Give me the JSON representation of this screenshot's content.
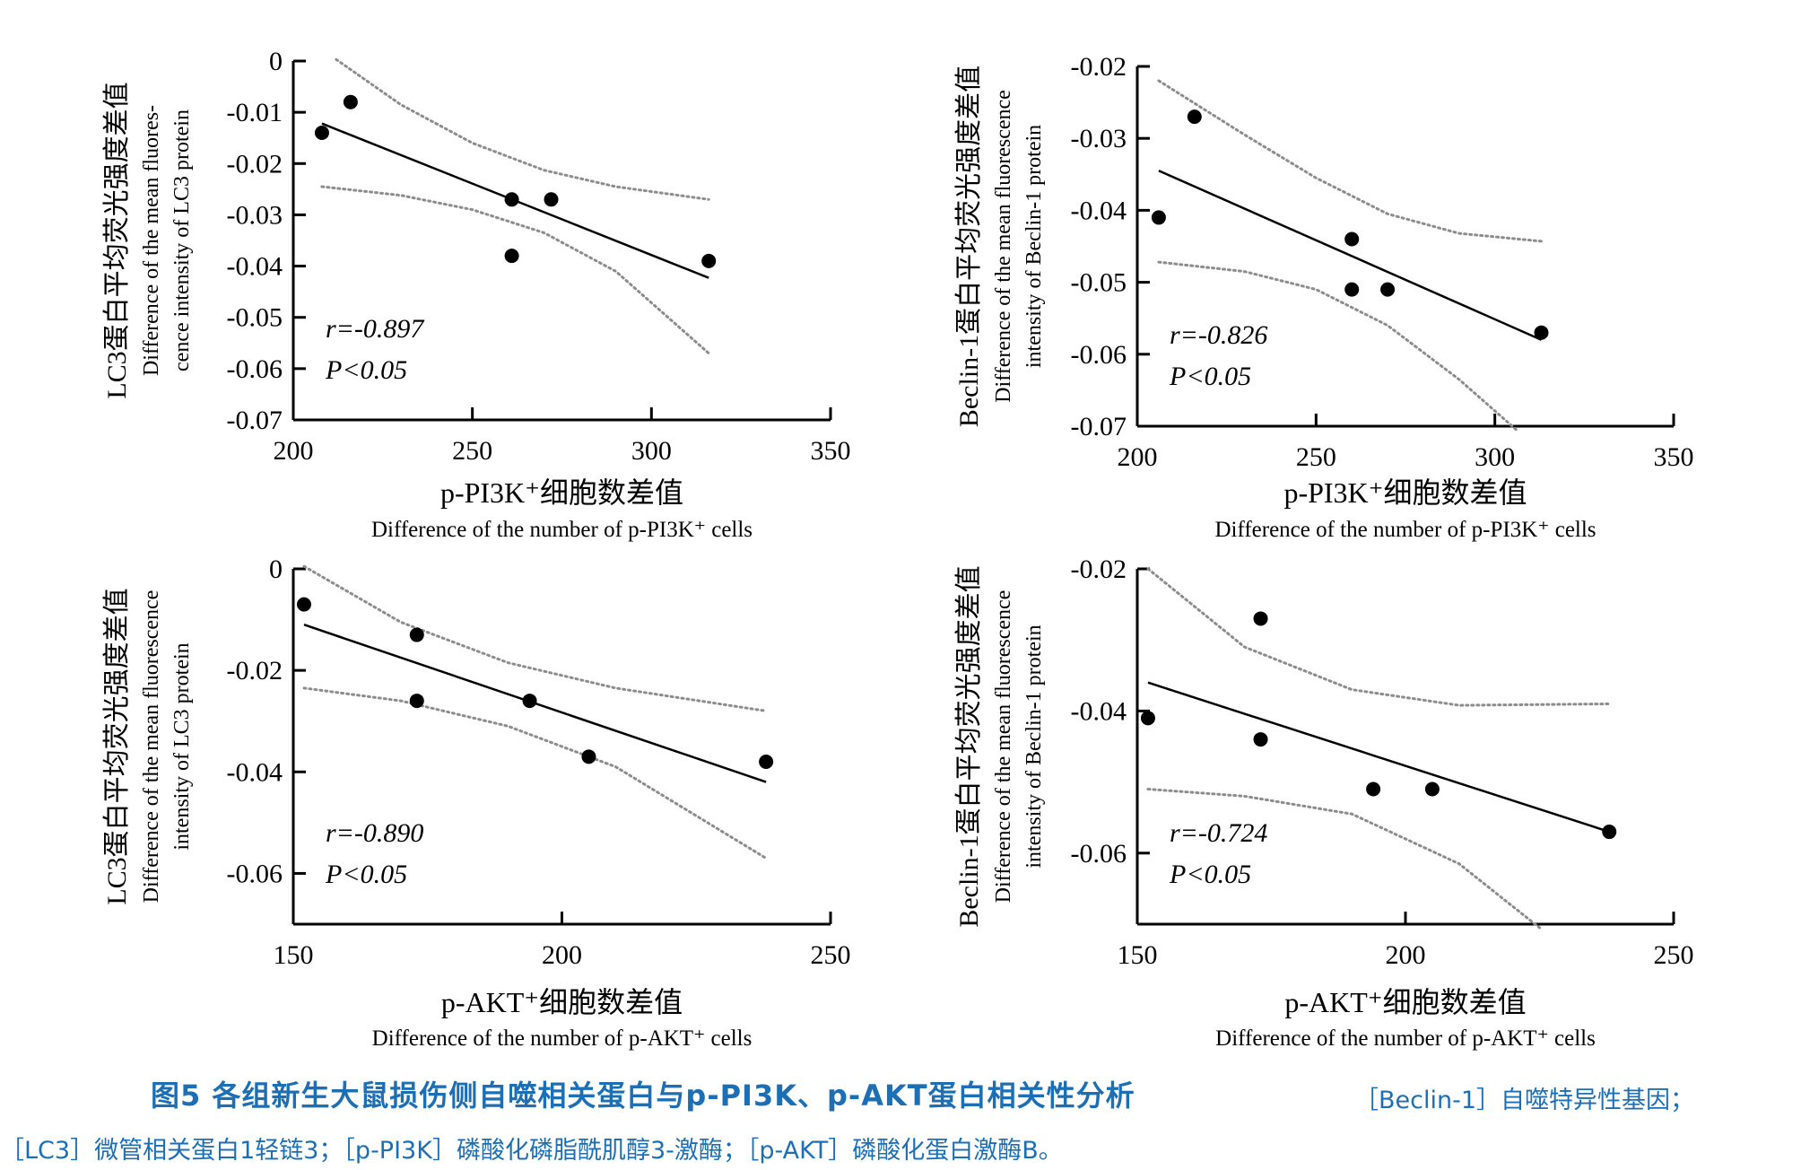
{
  "chart_data": [
    {
      "type": "scatter",
      "xlabel_cn": "p-PI3K⁺细胞数差值",
      "xlabel_en": "Difference of the number of p-PI3K⁺ cells",
      "ylabel_cn": "LC3蛋白平均荧光强度差值",
      "ylabel_en": [
        "Difference of the mean fluores-",
        "cence intensity of LC3 protein"
      ],
      "xlim": [
        200,
        350
      ],
      "ylim": [
        -0.07,
        0
      ],
      "xticks": [
        200,
        250,
        300,
        350
      ],
      "xtick_labels": [
        "200",
        "250",
        "300",
        "350"
      ],
      "yticks": [
        0,
        -0.01,
        -0.02,
        -0.03,
        -0.04,
        -0.05,
        -0.06,
        -0.07
      ],
      "ytick_labels": [
        "0",
        "-0.01",
        "-0.02",
        "-0.03",
        "-0.04",
        "-0.05",
        "-0.06",
        "-0.07"
      ],
      "points": [
        {
          "x": 216,
          "y": -0.008
        },
        {
          "x": 208,
          "y": -0.014
        },
        {
          "x": 261,
          "y": -0.027
        },
        {
          "x": 272,
          "y": -0.027
        },
        {
          "x": 261,
          "y": -0.038
        },
        {
          "x": 316,
          "y": -0.039
        }
      ],
      "fit": {
        "x": [
          208,
          316
        ],
        "y": [
          -0.0122,
          -0.0423
        ]
      },
      "ci_upper": {
        "x": [
          212,
          230,
          250,
          270,
          290,
          316
        ],
        "y": [
          0.0003,
          -0.0085,
          -0.016,
          -0.0213,
          -0.0245,
          -0.027
        ]
      },
      "ci_lower": {
        "x": [
          208,
          230,
          250,
          270,
          290,
          316
        ],
        "y": [
          -0.0245,
          -0.0262,
          -0.029,
          -0.0335,
          -0.041,
          -0.057
        ]
      },
      "r_label": "r=-0.897",
      "p_label": "P<0.05"
    },
    {
      "type": "scatter",
      "xlabel_cn": "p-PI3K⁺细胞数差值",
      "xlabel_en": "Difference of the number of p-PI3K⁺ cells",
      "ylabel_cn": "Beclin-1蛋白平均荧光强度差值",
      "ylabel_en": [
        "Difference of the mean fluorescence",
        "intensity of Beclin-1 protein"
      ],
      "xlim": [
        200,
        350
      ],
      "ylim": [
        -0.07,
        -0.02
      ],
      "xticks": [
        200,
        250,
        300,
        350
      ],
      "xtick_labels": [
        "200",
        "250",
        "300",
        "350"
      ],
      "yticks": [
        -0.02,
        -0.03,
        -0.04,
        -0.05,
        -0.06,
        -0.07
      ],
      "ytick_labels": [
        "-0.02",
        "-0.03",
        "-0.04",
        "-0.05",
        "-0.06",
        "-0.07"
      ],
      "points": [
        {
          "x": 216,
          "y": -0.027
        },
        {
          "x": 206,
          "y": -0.041
        },
        {
          "x": 260,
          "y": -0.044
        },
        {
          "x": 260,
          "y": -0.051
        },
        {
          "x": 270,
          "y": -0.051
        },
        {
          "x": 313,
          "y": -0.057
        }
      ],
      "fit": {
        "x": [
          206,
          313
        ],
        "y": [
          -0.0345,
          -0.058
        ]
      },
      "ci_upper": {
        "x": [
          206,
          230,
          250,
          270,
          290,
          313
        ],
        "y": [
          -0.022,
          -0.0295,
          -0.0355,
          -0.0405,
          -0.0432,
          -0.0443
        ]
      },
      "ci_lower": {
        "x": [
          206,
          230,
          250,
          270,
          290,
          306
        ],
        "y": [
          -0.0472,
          -0.0485,
          -0.051,
          -0.056,
          -0.0635,
          -0.0705
        ]
      },
      "r_label": "r=-0.826",
      "p_label": "P<0.05"
    },
    {
      "type": "scatter",
      "xlabel_cn": "p-AKT⁺细胞数差值",
      "xlabel_en": "Difference of the number of p-AKT⁺ cells",
      "ylabel_cn": "LC3蛋白平均荧光强度差值",
      "ylabel_en": [
        "Difference of the mean fluorescence",
        "intensity of LC3 protein"
      ],
      "xlim": [
        150,
        250
      ],
      "ylim": [
        -0.07,
        0
      ],
      "xticks": [
        150,
        200,
        250
      ],
      "xtick_labels": [
        "150",
        "200",
        "250"
      ],
      "yticks": [
        0,
        -0.02,
        -0.04,
        -0.06
      ],
      "ytick_labels": [
        "0",
        "-0.02",
        "-0.04",
        "-0.06"
      ],
      "points": [
        {
          "x": 152,
          "y": -0.007
        },
        {
          "x": 173,
          "y": -0.013
        },
        {
          "x": 173,
          "y": -0.026
        },
        {
          "x": 194,
          "y": -0.026
        },
        {
          "x": 205,
          "y": -0.037
        },
        {
          "x": 238,
          "y": -0.038
        }
      ],
      "fit": {
        "x": [
          152,
          238
        ],
        "y": [
          -0.011,
          -0.042
        ]
      },
      "ci_upper": {
        "x": [
          152,
          170,
          190,
          210,
          238
        ],
        "y": [
          0.0005,
          -0.0105,
          -0.0185,
          -0.0235,
          -0.028
        ]
      },
      "ci_lower": {
        "x": [
          152,
          170,
          190,
          210,
          238
        ],
        "y": [
          -0.0235,
          -0.026,
          -0.031,
          -0.039,
          -0.057
        ]
      },
      "r_label": "r=-0.890",
      "p_label": "P<0.05"
    },
    {
      "type": "scatter",
      "xlabel_cn": "p-AKT⁺细胞数差值",
      "xlabel_en": "Difference of the number of p-AKT⁺ cells",
      "ylabel_cn": "Beclin-1蛋白平均荧光强度差值",
      "ylabel_en": [
        "Difference of the mean fluorescence",
        "intensity of Beclin-1 protein"
      ],
      "xlim": [
        150,
        250
      ],
      "ylim": [
        -0.07,
        -0.02
      ],
      "xticks": [
        150,
        200,
        250
      ],
      "xtick_labels": [
        "150",
        "200",
        "250"
      ],
      "yticks": [
        -0.02,
        -0.04,
        -0.06
      ],
      "ytick_labels": [
        "-0.02",
        "-0.04",
        "-0.06"
      ],
      "points": [
        {
          "x": 173,
          "y": -0.027
        },
        {
          "x": 152,
          "y": -0.041
        },
        {
          "x": 173,
          "y": -0.044
        },
        {
          "x": 194,
          "y": -0.051
        },
        {
          "x": 205,
          "y": -0.051
        },
        {
          "x": 238,
          "y": -0.057
        }
      ],
      "fit": {
        "x": [
          152,
          238
        ],
        "y": [
          -0.036,
          -0.057
        ]
      },
      "ci_upper": {
        "x": [
          152,
          170,
          190,
          210,
          238
        ],
        "y": [
          -0.02,
          -0.031,
          -0.037,
          -0.0392,
          -0.039
        ]
      },
      "ci_lower": {
        "x": [
          152,
          170,
          190,
          210,
          225
        ],
        "y": [
          -0.051,
          -0.052,
          -0.0545,
          -0.0615,
          -0.0705
        ]
      },
      "r_label": "r=-0.724",
      "p_label": "P<0.05"
    }
  ],
  "caption": {
    "title": "图5   各组新生大鼠损伤侧自噬相关蛋白与p-PI3K、p-AKT蛋白相关性分析",
    "note_line1": "［Beclin-1］自噬特异性基因；",
    "note_line2": "［LC3］微管相关蛋白1轻链3；［p-PI3K］磷酸化磷脂酰肌醇3-激酶；［p-AKT］磷酸化蛋白激酶B。"
  },
  "colors": {
    "points": "#000000",
    "fit": "#000000",
    "ci": "#8c8c8c",
    "caption": "#1d6fb5"
  }
}
